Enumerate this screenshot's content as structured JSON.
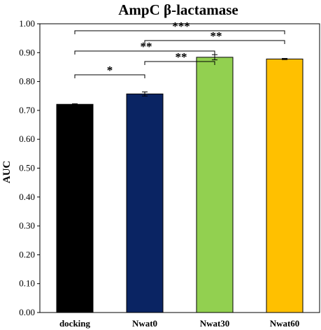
{
  "chart_data": {
    "type": "bar",
    "title": "AmpC β-lactamase",
    "xlabel": "",
    "ylabel": "AUC",
    "ylim": [
      0,
      1.0
    ],
    "yticks": [
      "0.00",
      "0.10",
      "0.20",
      "0.30",
      "0.40",
      "0.50",
      "0.60",
      "0.70",
      "0.80",
      "0.90",
      "1.00"
    ],
    "grid": false,
    "categories": [
      "docking",
      "Nwat0",
      "Nwat30",
      "Nwat60"
    ],
    "values": [
      0.721,
      0.757,
      0.884,
      0.878
    ],
    "errors": [
      0.002,
      0.007,
      0.009,
      0.002
    ],
    "colors": [
      "#000000",
      "#0a2463",
      "#92d050",
      "#ffc000"
    ],
    "significance": [
      {
        "from": 0,
        "to": 3,
        "label": "***"
      },
      {
        "from": 1,
        "to": 3,
        "label": "**"
      },
      {
        "from": 0,
        "to": 2,
        "label": "**"
      },
      {
        "from": 1,
        "to": 2,
        "label": "**"
      },
      {
        "from": 0,
        "to": 1,
        "label": "*"
      }
    ]
  }
}
